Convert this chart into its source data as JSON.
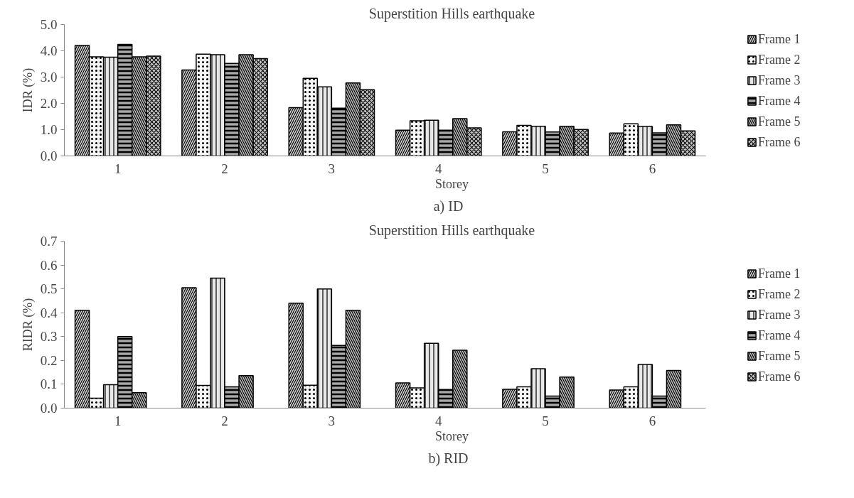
{
  "chart_data": [
    {
      "type": "bar",
      "title": "Superstition Hills earthquake",
      "xlabel": "Storey",
      "ylabel": "IDR (%)",
      "categories": [
        "1",
        "2",
        "3",
        "4",
        "5",
        "6"
      ],
      "ylim": [
        0,
        5
      ],
      "yticks": [
        {
          "value": 0,
          "label": "0.0"
        },
        {
          "value": 1,
          "label": "1.0"
        },
        {
          "value": 2,
          "label": "2.0"
        },
        {
          "value": 3,
          "label": "3.0"
        },
        {
          "value": 4,
          "label": "4.0"
        },
        {
          "value": 5,
          "label": "5.0"
        }
      ],
      "legend": "right",
      "annotations": [
        "a)   ID"
      ],
      "series": [
        {
          "name": "Frame 1",
          "color": "#d4d4d4",
          "values": [
            4.2,
            3.27,
            1.84,
            0.98,
            0.92,
            0.87
          ]
        },
        {
          "name": "Frame 2",
          "color": "#f6f6f6",
          "values": [
            3.77,
            3.87,
            2.95,
            1.34,
            1.16,
            1.22
          ]
        },
        {
          "name": "Frame 3",
          "color": "#e8e8e8",
          "values": [
            3.76,
            3.85,
            2.63,
            1.36,
            1.13,
            1.12
          ]
        },
        {
          "name": "Frame 4",
          "color": "#a8a8a8",
          "values": [
            4.24,
            3.52,
            1.82,
            0.98,
            0.91,
            0.88
          ]
        },
        {
          "name": "Frame 5",
          "color": "#bcbcbc",
          "values": [
            3.77,
            3.85,
            2.78,
            1.42,
            1.13,
            1.18
          ]
        },
        {
          "name": "Frame 6",
          "color": "#c8c8c8",
          "values": [
            3.8,
            3.7,
            2.52,
            1.07,
            1.01,
            0.95
          ]
        }
      ]
    },
    {
      "type": "bar",
      "title": "Superstition Hills earthquake",
      "xlabel": "Storey",
      "ylabel": "RIDR (%)",
      "categories": [
        "1",
        "2",
        "3",
        "4",
        "5",
        "6"
      ],
      "ylim": [
        0,
        0.7
      ],
      "yticks": [
        {
          "value": 0,
          "label": "0.0"
        },
        0.1,
        0.2,
        0.3,
        0.4,
        0.5,
        0.6,
        0.7
      ],
      "legend": "right",
      "annotations": [
        "b)   RID"
      ],
      "series": [
        {
          "name": "Frame 1",
          "color": "#d4d4d4",
          "values": [
            0.41,
            0.505,
            0.44,
            0.106,
            0.079,
            0.076
          ]
        },
        {
          "name": "Frame 2",
          "color": "#f6f6f6",
          "values": [
            0.042,
            0.095,
            0.096,
            0.085,
            0.089,
            0.089
          ]
        },
        {
          "name": "Frame 3",
          "color": "#e8e8e8",
          "values": [
            0.098,
            0.545,
            0.5,
            0.272,
            0.165,
            0.183
          ]
        },
        {
          "name": "Frame 4",
          "color": "#a8a8a8",
          "values": [
            0.3,
            0.089,
            0.263,
            0.078,
            0.051,
            0.051
          ]
        },
        {
          "name": "Frame 5",
          "color": "#bcbcbc",
          "values": [
            0.065,
            0.136,
            0.41,
            0.243,
            0.13,
            0.158
          ]
        },
        {
          "name": "Frame 6",
          "color": "#c8c8c8",
          "values": [
            null,
            null,
            null,
            null,
            null,
            null
          ]
        }
      ]
    }
  ]
}
